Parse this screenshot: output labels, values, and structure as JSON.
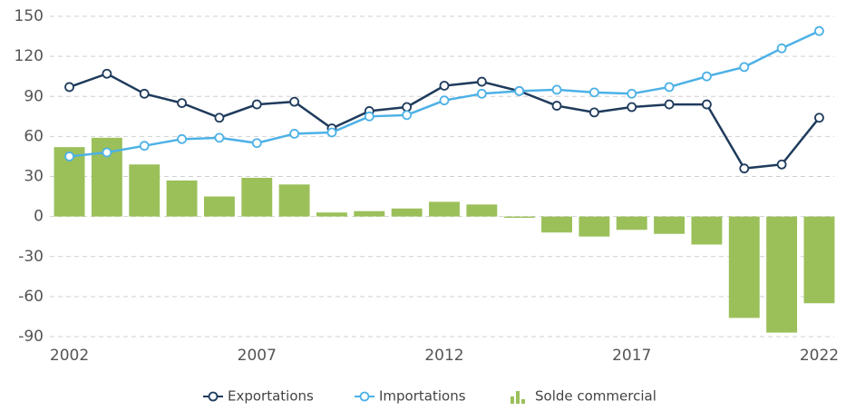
{
  "chart_data": {
    "type": "combo",
    "x": [
      2002,
      2003,
      2004,
      2005,
      2006,
      2007,
      2008,
      2009,
      2010,
      2011,
      2012,
      2013,
      2014,
      2015,
      2016,
      2017,
      2018,
      2019,
      2020,
      2021,
      2022
    ],
    "xlim": [
      2001.6,
      2022.4
    ],
    "xticks": [
      2002,
      2007,
      2012,
      2017,
      2022
    ],
    "ylim": [
      -90,
      150
    ],
    "yticks": [
      -90,
      -60,
      -30,
      0,
      30,
      60,
      90,
      120,
      150
    ],
    "grid": true,
    "legend": "bottom",
    "series": [
      {
        "name": "Exportations",
        "type": "line",
        "color": "#1f3b5c",
        "values": [
          97,
          107,
          92,
          85,
          74,
          84,
          86,
          66,
          79,
          82,
          98,
          101,
          94,
          83,
          78,
          82,
          84,
          84,
          36,
          39,
          74
        ]
      },
      {
        "name": "Importations",
        "type": "line",
        "color": "#4db1e6",
        "values": [
          45,
          48,
          53,
          58,
          59,
          55,
          62,
          63,
          75,
          76,
          87,
          92,
          94,
          95,
          93,
          92,
          97,
          105,
          112,
          126,
          139
        ]
      },
      {
        "name": "Solde commercial",
        "type": "bar",
        "color": "#9bc05a",
        "values": [
          52,
          59,
          39,
          27,
          15,
          29,
          24,
          3,
          4,
          6,
          11,
          9,
          -1,
          -12,
          -15,
          -10,
          -13,
          -21,
          -76,
          -87,
          -65
        ]
      }
    ]
  }
}
